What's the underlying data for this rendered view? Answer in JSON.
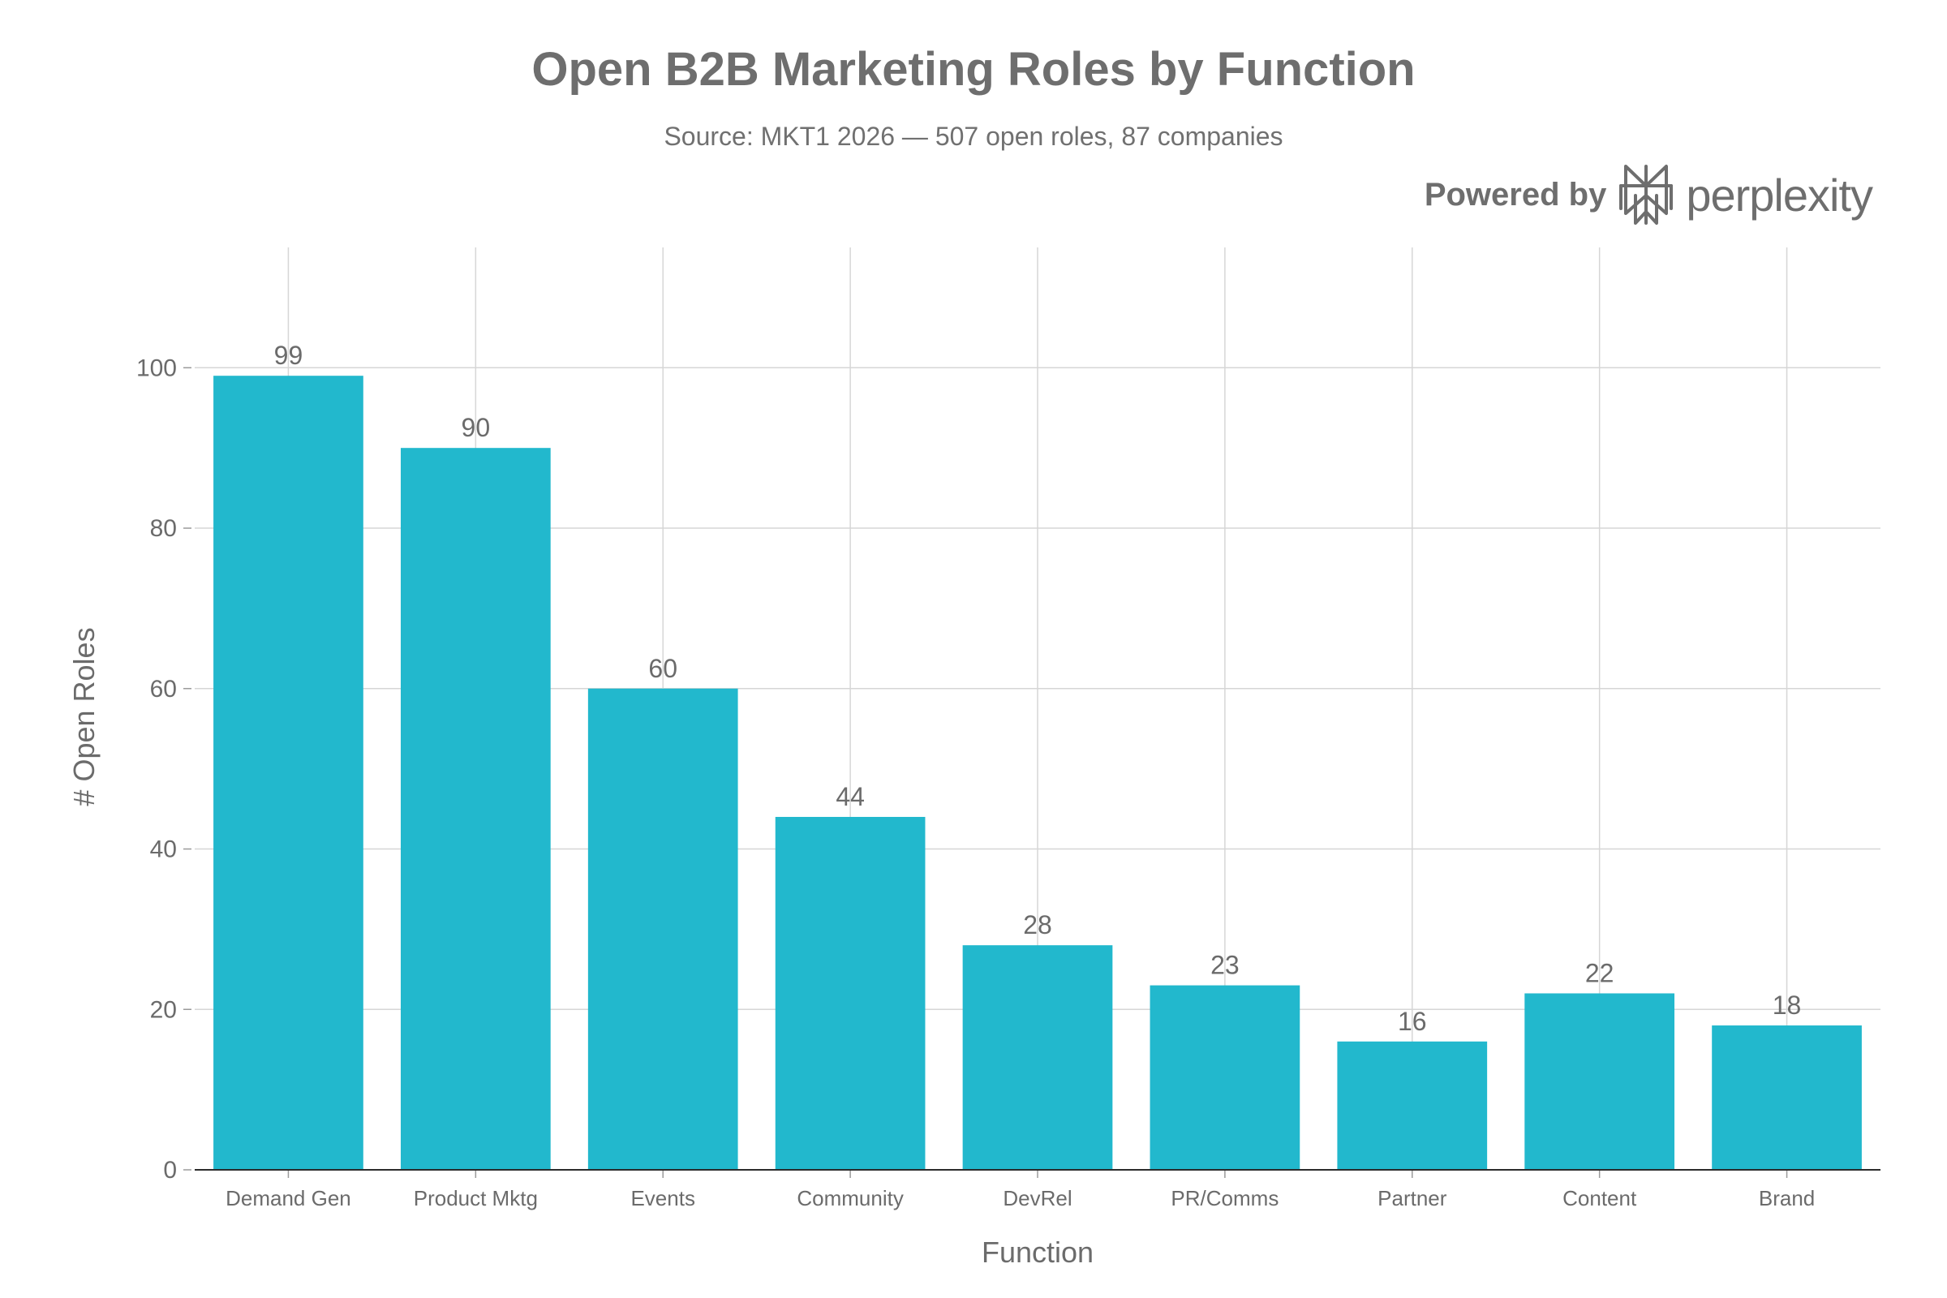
{
  "chart_data": {
    "type": "bar",
    "title": "Open B2B Marketing Roles by Function",
    "subtitle": "Source: MKT1 2026 — 507 open roles, 87 companies",
    "xlabel": "Function",
    "ylabel": "# Open Roles",
    "categories": [
      "Demand Gen",
      "Product Mktg",
      "Events",
      "Community",
      "DevRel",
      "PR/Comms",
      "Partner",
      "Content",
      "Brand"
    ],
    "values": [
      99,
      90,
      60,
      44,
      28,
      23,
      16,
      22,
      18
    ],
    "ylim": [
      0,
      115
    ],
    "yticks": [
      0,
      20,
      40,
      60,
      80,
      100
    ],
    "grid": true,
    "bar_color": "#22b8cd",
    "show_data_labels": true
  },
  "branding": {
    "prefix": "Powered by",
    "name": "perplexity",
    "logo_icon": "perplexity-logo-icon"
  }
}
